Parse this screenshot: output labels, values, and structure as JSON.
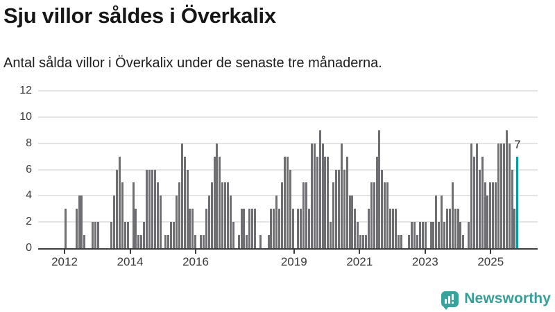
{
  "header": {
    "title": "Sju villor såldes i Överkalix",
    "subtitle": "Antal sålda villor i Överkalix under de senaste tre månaderna."
  },
  "chart_data": {
    "type": "bar",
    "title": "Sju villor såldes i Överkalix",
    "subtitle": "Antal sålda villor i Överkalix under de senaste tre månaderna.",
    "x_unit": "month",
    "x_first_bar": "2011-10",
    "ylim": [
      0,
      12
    ],
    "yticks": [
      0,
      2,
      4,
      6,
      8,
      10,
      12
    ],
    "xtick_years": [
      2012,
      2014,
      2016,
      2019,
      2021,
      2023,
      2025
    ],
    "grid": "horizontal",
    "legend": "none",
    "highlight_last": true,
    "annotation": "7",
    "colors": {
      "bar": "#6e6e73",
      "highlight": "#00a09a",
      "gridline": "#e4e4e4",
      "axis": "#3d3d3d"
    },
    "values": [
      0,
      0,
      0,
      3,
      0,
      0,
      0,
      3,
      4,
      4,
      1,
      0,
      0,
      2,
      2,
      2,
      0,
      0,
      0,
      0,
      2,
      4,
      6,
      7,
      5,
      2,
      2,
      0,
      5,
      3,
      1,
      1,
      2,
      6,
      6,
      6,
      6,
      5,
      4,
      0,
      1,
      1,
      2,
      2,
      4,
      5,
      8,
      7,
      6,
      3,
      3,
      1,
      0,
      1,
      1,
      3,
      4,
      5,
      7,
      8,
      7,
      5,
      5,
      5,
      4,
      2,
      0,
      1,
      3,
      3,
      1,
      3,
      3,
      3,
      0,
      1,
      0,
      0,
      1,
      3,
      3,
      4,
      3,
      5,
      7,
      7,
      6,
      3,
      0,
      3,
      3,
      5,
      5,
      3,
      8,
      8,
      7,
      9,
      8,
      7,
      7,
      2,
      5,
      6,
      6,
      8,
      6,
      7,
      4,
      4,
      3,
      2,
      1,
      1,
      1,
      3,
      5,
      5,
      7,
      9,
      6,
      5,
      5,
      3,
      3,
      3,
      1,
      1,
      0,
      0,
      1,
      2,
      2,
      1,
      2,
      2,
      2,
      0,
      2,
      2,
      4,
      2,
      4,
      2,
      3,
      3,
      5,
      3,
      3,
      2,
      1,
      0,
      2,
      8,
      7,
      8,
      6,
      7,
      5,
      4,
      5,
      5,
      5,
      8,
      8,
      8,
      9,
      8,
      6,
      3,
      7
    ]
  },
  "footer": {
    "brand": "Newsworthy",
    "brand_color": "#359f99"
  }
}
